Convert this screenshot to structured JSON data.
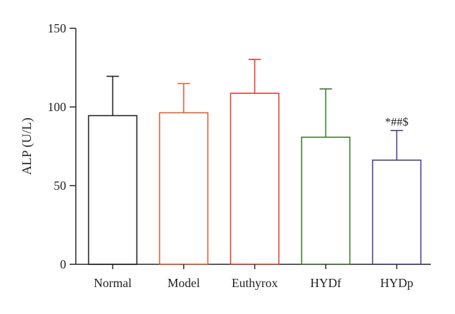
{
  "chart_data": {
    "type": "bar",
    "title": "",
    "xlabel": "",
    "ylabel": "ALP (U/L)",
    "ylim": [
      0,
      150
    ],
    "yticks": [
      0,
      50,
      100,
      150
    ],
    "grid": false,
    "categories": [
      "Normal",
      "Model",
      "Euthyrox",
      "HYDf",
      "HYDp"
    ],
    "values": [
      94.5,
      96.3,
      108.7,
      80.8,
      66.2
    ],
    "errors": [
      25.0,
      18.5,
      21.5,
      30.7,
      18.8
    ],
    "colors": [
      "#231f20",
      "#e05a2b",
      "#e03c2f",
      "#3a7a2a",
      "#4a3a8c"
    ],
    "annotations": [
      {
        "category": "HYDp",
        "text": "*##$"
      }
    ]
  }
}
